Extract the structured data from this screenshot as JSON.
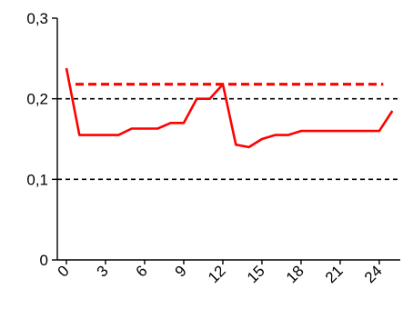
{
  "chart_data": {
    "type": "line",
    "title": "",
    "xlabel": "",
    "ylabel": "",
    "xlim": [
      0,
      25
    ],
    "ylim": [
      0,
      0.3
    ],
    "x_ticks": [
      0,
      3,
      6,
      9,
      12,
      15,
      18,
      21,
      24
    ],
    "x_tick_labels": [
      "0",
      "3",
      "6",
      "9",
      "12",
      "15",
      "18",
      "21",
      "24"
    ],
    "y_ticks": [
      0,
      0.1,
      0.2,
      0.3
    ],
    "y_tick_labels": [
      "0",
      "0,1",
      "0,2",
      "0,3"
    ],
    "grid": "dashed horizontal lines at 0,1 and 0,2",
    "legend": "none",
    "series": [
      {
        "color": "#ff0000",
        "style": "solid",
        "x": [
          0,
          1,
          2,
          3,
          4,
          5,
          6,
          7,
          8,
          9,
          10,
          11,
          12,
          13,
          14,
          15,
          16,
          17,
          18,
          19,
          20,
          21,
          22,
          23,
          24,
          25
        ],
        "values": [
          0.238,
          0.155,
          0.155,
          0.155,
          0.155,
          0.163,
          0.163,
          0.163,
          0.17,
          0.17,
          0.2,
          0.2,
          0.218,
          0.143,
          0.14,
          0.15,
          0.155,
          0.155,
          0.16,
          0.16,
          0.16,
          0.16,
          0.16,
          0.16,
          0.16,
          0.185
        ]
      },
      {
        "color": "#ff0000",
        "style": "dashed",
        "x": [
          0,
          25
        ],
        "values": [
          0.218,
          0.218
        ]
      }
    ],
    "reference_lines": [
      {
        "y": 0.2,
        "color": "#000000",
        "style": "dashed"
      },
      {
        "y": 0.1,
        "color": "#000000",
        "style": "dashed"
      }
    ]
  },
  "colors": {
    "series": "#ff0000",
    "axis": "#000000",
    "gridline": "#000000"
  }
}
